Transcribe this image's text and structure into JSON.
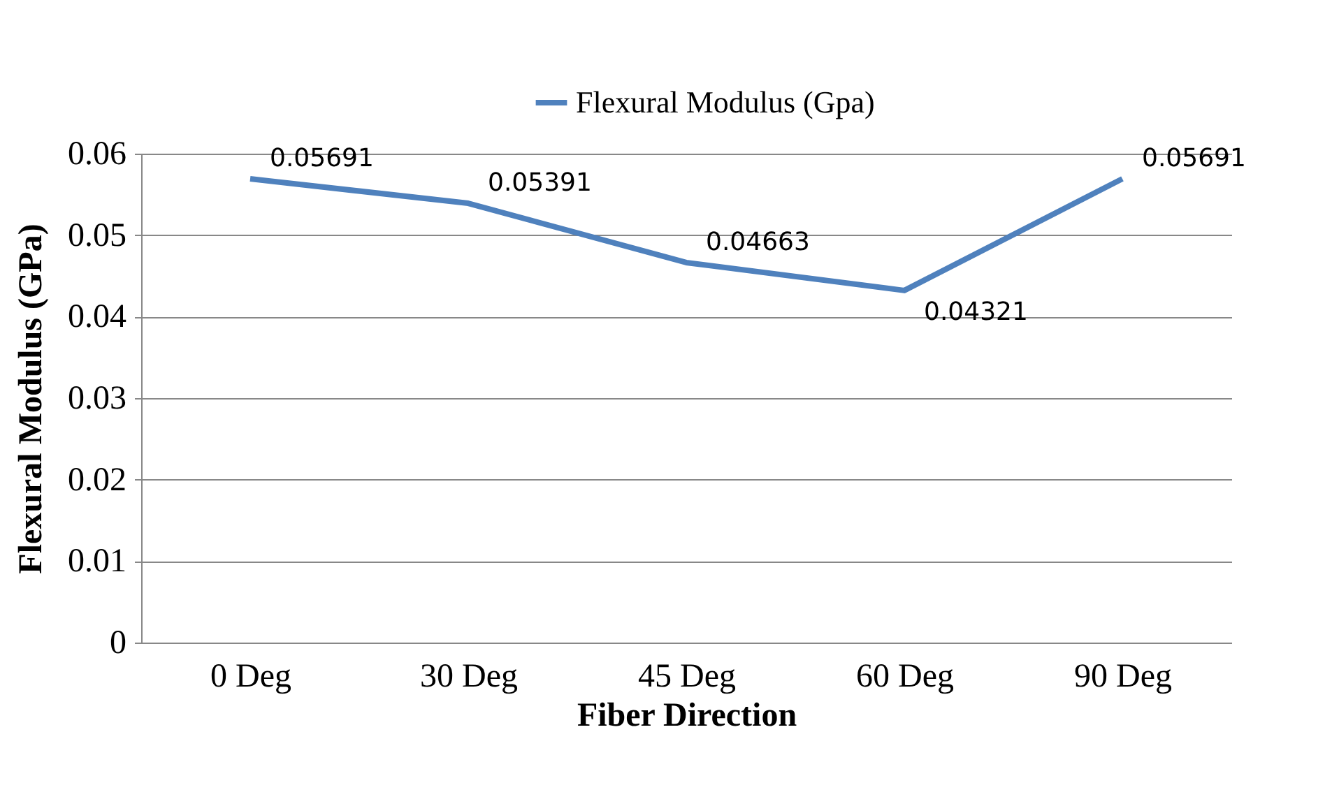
{
  "chart_data": {
    "type": "line",
    "xlabel": "Fiber Direction",
    "ylabel": "Flexural Modulus (GPa)",
    "categories": [
      "0 Deg",
      "30 Deg",
      "45 Deg",
      "60 Deg",
      "90 Deg"
    ],
    "series": [
      {
        "name": "Flexural Modulus (Gpa)",
        "color": "#4f81bd",
        "values": [
          0.05691,
          0.05391,
          0.04663,
          0.04321,
          0.05691
        ]
      }
    ],
    "ylim": [
      0,
      0.06
    ],
    "yticks": [
      0,
      0.01,
      0.02,
      0.03,
      0.04,
      0.05,
      0.06
    ],
    "grid": "y",
    "legend": "top",
    "data_labels": true,
    "marker": "none",
    "line_style": "solid"
  }
}
